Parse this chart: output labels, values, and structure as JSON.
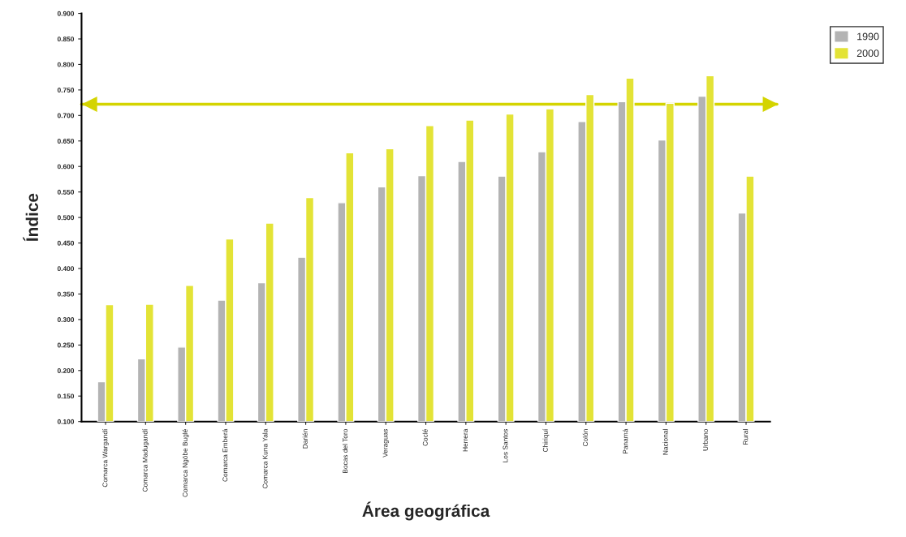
{
  "chart_data": {
    "type": "bar",
    "xlabel": "Área geográfica",
    "ylabel": "Índice",
    "categories": [
      "Comarca Wargandí",
      "Comarca Madugandí",
      "Comarca Ngöbe Buglé",
      "Comarca Emberá",
      "Comarca Kuna Yala",
      "Darién",
      "Bocas del Toro",
      "Veraguas",
      "Coclé",
      "Herrera",
      "Los Santos",
      "Chiriquí",
      "Colón",
      "Panamá",
      "Nacional",
      "Urbano",
      "Rural"
    ],
    "series": [
      {
        "name": "1990",
        "color": "#b3b3b3",
        "values": [
          0.178,
          0.223,
          0.246,
          0.338,
          0.372,
          0.422,
          0.529,
          0.56,
          0.582,
          0.61,
          0.581,
          0.629,
          0.688,
          0.727,
          0.652,
          0.738,
          0.509
        ]
      },
      {
        "name": "2000",
        "color": "#e3e336",
        "values": [
          0.329,
          0.33,
          0.367,
          0.458,
          0.489,
          0.539,
          0.627,
          0.635,
          0.68,
          0.691,
          0.703,
          0.713,
          0.741,
          0.773,
          0.724,
          0.778,
          0.581
        ]
      }
    ],
    "ylim": [
      0.1,
      0.9
    ],
    "yticks": [
      {
        "value": 0.1,
        "label": "0.100"
      },
      {
        "value": 0.15,
        "label": "0.150"
      },
      {
        "value": 0.2,
        "label": "0.200"
      },
      {
        "value": 0.25,
        "label": "0.250"
      },
      {
        "value": 0.3,
        "label": "0.300"
      },
      {
        "value": 0.35,
        "label": "0.350"
      },
      {
        "value": 0.4,
        "label": "0.400"
      },
      {
        "value": 0.45,
        "label": "0.450"
      },
      {
        "value": 0.5,
        "label": "0.500"
      },
      {
        "value": 0.55,
        "label": "0.550"
      },
      {
        "value": 0.6,
        "label": "0.600"
      },
      {
        "value": 0.65,
        "label": "0.650"
      },
      {
        "value": 0.7,
        "label": "0.700"
      },
      {
        "value": 0.75,
        "label": "0.750"
      },
      {
        "value": 0.8,
        "label": "0.800"
      },
      {
        "value": 0.85,
        "label": "0.850"
      },
      {
        "value": 0.9,
        "label": "0.900"
      }
    ],
    "ref_lines": [
      {
        "axis": "y",
        "value": 0.722,
        "color": "#d4d400"
      }
    ],
    "grid": false,
    "legend": "top right"
  }
}
